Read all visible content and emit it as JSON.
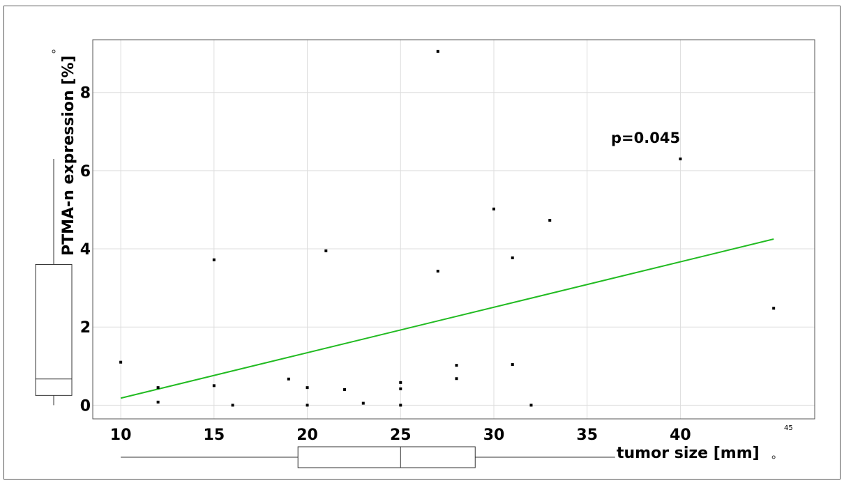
{
  "chart_data": {
    "type": "scatter",
    "xlabel": "tumor size [mm]",
    "ylabel": "PTMA-n expression [%]",
    "annotation": "p=0.045",
    "x_outlier_label": "45",
    "xlim": [
      8.5,
      47.2
    ],
    "ylim": [
      -0.35,
      9.35
    ],
    "xticks": [
      10,
      15,
      20,
      25,
      30,
      35,
      40
    ],
    "yticks": [
      0,
      2,
      4,
      6,
      8
    ],
    "grid": true,
    "points": [
      [
        10,
        1.1
      ],
      [
        12,
        0.45
      ],
      [
        12,
        0.08
      ],
      [
        15,
        3.72
      ],
      [
        15,
        0.5
      ],
      [
        16,
        0.0
      ],
      [
        19,
        0.67
      ],
      [
        20,
        0.45
      ],
      [
        20,
        0.0
      ],
      [
        21,
        3.95
      ],
      [
        22,
        0.4
      ],
      [
        23,
        0.05
      ],
      [
        25,
        0.58
      ],
      [
        25,
        0.42
      ],
      [
        25,
        0.0
      ],
      [
        27,
        9.05
      ],
      [
        27,
        3.43
      ],
      [
        28,
        1.02
      ],
      [
        28,
        0.68
      ],
      [
        30,
        5.02
      ],
      [
        31,
        3.77
      ],
      [
        31,
        1.04
      ],
      [
        32,
        0.0
      ],
      [
        33,
        4.73
      ],
      [
        40,
        6.3
      ],
      [
        45,
        2.48
      ]
    ],
    "trend_line": {
      "x": [
        10,
        45
      ],
      "y": [
        0.18,
        4.25
      ],
      "color": "#22bb22"
    },
    "x_boxplot": {
      "min": 10,
      "q1": 19.5,
      "median": 25,
      "q3": 29,
      "max": 36.5,
      "outliers": [
        45
      ]
    },
    "y_boxplot": {
      "min": 0,
      "q1": 0.25,
      "median": 0.67,
      "q3": 3.6,
      "max": 6.3,
      "outliers": [
        9.05
      ]
    }
  }
}
